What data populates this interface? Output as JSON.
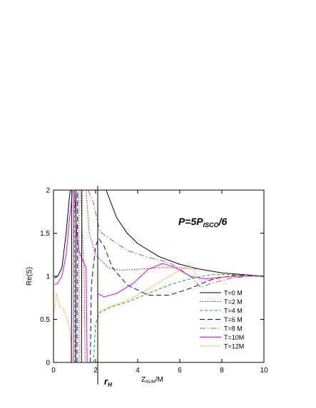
{
  "chart_data": {
    "type": "line",
    "xlabel": {
      "main": "Z",
      "sub": "NUM",
      "suffix": "/M"
    },
    "ylabel": "Re(S)",
    "xlim": [
      0,
      10
    ],
    "ylim": [
      0,
      2
    ],
    "xticks": [
      "0",
      "2",
      "4",
      "6",
      "8",
      "10"
    ],
    "yticks": [
      "0",
      "0.5",
      "1",
      "1.5",
      "2"
    ],
    "grid": false,
    "legend_position": "bottom-right",
    "annotation": {
      "base": "P=5P",
      "sub": "ISCO",
      "tail": "/6"
    },
    "rh_label": {
      "base": "r",
      "sub": "H"
    },
    "rh_value": 2.1,
    "series": [
      {
        "name": "T=0 M",
        "color": "#000000",
        "dash": "",
        "points": [
          [
            0.05,
            0.98
          ],
          [
            0.2,
            1.0
          ],
          [
            0.4,
            1.1
          ],
          [
            0.6,
            1.5
          ],
          [
            0.75,
            1.9
          ],
          [
            0.8,
            2.0
          ],
          null,
          [
            2.5,
            2.0
          ],
          [
            3,
            1.68
          ],
          [
            3.5,
            1.5
          ],
          [
            4,
            1.38
          ],
          [
            5,
            1.23
          ],
          [
            6,
            1.14
          ],
          [
            7,
            1.08
          ],
          [
            8,
            1.04
          ],
          [
            9,
            1.02
          ],
          [
            10,
            1.0
          ]
        ]
      },
      {
        "name": "T=2 M",
        "color": "#d00000",
        "dash": "1.5,2",
        "points": [
          [
            1.3,
            2.0
          ],
          [
            1.35,
            1.6
          ],
          [
            1.4,
            1.3
          ],
          [
            1.45,
            1.1
          ],
          [
            1.5,
            0.0
          ],
          null,
          [
            1.55,
            2.0
          ],
          [
            1.7,
            1.5
          ],
          [
            2,
            1.25
          ],
          [
            2.6,
            1.1
          ],
          [
            3.2,
            1.07
          ],
          [
            4,
            1.08
          ],
          [
            5,
            1.1
          ],
          [
            6,
            1.1
          ],
          [
            7,
            1.08
          ],
          [
            8,
            1.04
          ],
          [
            9,
            1.02
          ],
          [
            10,
            1.0
          ]
        ]
      },
      {
        "name": "T=4 M",
        "color": "#00bb00",
        "dash": "4,3",
        "points": [
          [
            1.9,
            0.0
          ],
          [
            2.0,
            0.45
          ],
          [
            2.2,
            0.58
          ],
          [
            2.8,
            0.65
          ],
          [
            3.5,
            0.7
          ],
          [
            4.5,
            0.8
          ],
          [
            5.5,
            0.9
          ],
          [
            6.5,
            0.97
          ],
          [
            7.5,
            1.02
          ],
          [
            8.5,
            1.02
          ],
          [
            9.3,
            1.01
          ],
          [
            10,
            1.0
          ]
        ]
      },
      {
        "name": "T=6 M",
        "color": "#0000dd",
        "dash": "7,4",
        "points": [
          [
            1.75,
            0.0
          ],
          [
            1.8,
            0.9
          ],
          [
            2.0,
            1.35
          ],
          [
            2.15,
            1.44
          ],
          [
            2.4,
            1.35
          ],
          [
            2.8,
            1.1
          ],
          [
            3.5,
            0.9
          ],
          [
            4.5,
            0.78
          ],
          [
            5.5,
            0.78
          ],
          [
            6.5,
            0.86
          ],
          [
            7.5,
            0.96
          ],
          [
            8.5,
            1.01
          ],
          [
            9.3,
            1.01
          ],
          [
            10,
            1.0
          ]
        ]
      },
      {
        "name": "T=8 M",
        "color": "#a06060",
        "dash": "8,3,1.5,3",
        "points": [
          [
            1.65,
            2.0
          ],
          [
            1.9,
            1.85
          ],
          [
            2.2,
            1.52
          ],
          [
            2.6,
            1.45
          ],
          [
            3.5,
            1.3
          ],
          [
            4.5,
            1.22
          ],
          [
            5.5,
            1.16
          ],
          [
            6.5,
            1.0
          ],
          [
            7,
            0.87
          ],
          [
            7.5,
            0.92
          ],
          [
            8.5,
            0.98
          ],
          [
            9.3,
            1.0
          ],
          [
            10,
            1.0
          ]
        ]
      },
      {
        "name": "T=10M",
        "color": "#ee00ee",
        "dash": "",
        "points": [
          [
            0.05,
            0.9
          ],
          [
            0.2,
            0.92
          ],
          [
            0.4,
            1.0
          ],
          [
            0.6,
            1.25
          ],
          [
            0.7,
            1.5
          ],
          [
            0.75,
            1.65
          ],
          [
            0.85,
            1.85
          ],
          [
            0.9,
            2.0
          ],
          null,
          [
            1.0,
            2.0
          ],
          [
            1.1,
            1.5
          ],
          [
            1.2,
            1.3
          ],
          [
            1.4,
            1.18
          ],
          [
            1.55,
            1.1
          ],
          [
            1.6,
            0.0
          ],
          null,
          [
            2.1,
            0.8
          ],
          [
            2.4,
            0.76
          ],
          [
            3,
            0.8
          ],
          [
            3.8,
            0.92
          ],
          [
            4.5,
            1.08
          ],
          [
            5.2,
            1.15
          ],
          [
            5.8,
            1.1
          ],
          [
            6.5,
            1.0
          ],
          [
            7.2,
            0.97
          ],
          [
            8,
            0.99
          ],
          [
            9,
            1.0
          ],
          [
            10,
            1.0
          ]
        ]
      },
      {
        "name": "T=12M",
        "color": "#ff9900",
        "dash": "1.5,1.5",
        "points": [
          [
            0.05,
            0.6
          ],
          [
            0.15,
            0.8
          ],
          [
            0.3,
            0.64
          ],
          [
            0.45,
            0.63
          ],
          [
            0.6,
            0.55
          ],
          [
            0.75,
            0.4
          ],
          [
            0.85,
            0.2
          ],
          [
            0.9,
            0.0
          ],
          null,
          [
            2.1,
            0.58
          ],
          [
            2.6,
            0.64
          ],
          [
            3.5,
            0.72
          ],
          [
            4.5,
            0.85
          ],
          [
            5.5,
            1.0
          ],
          [
            6.2,
            1.1
          ],
          [
            6.5,
            1.12
          ],
          [
            7,
            0.93
          ],
          [
            7.5,
            0.97
          ],
          [
            8.5,
            1.0
          ],
          [
            10,
            1.0
          ]
        ]
      },
      {
        "name": "",
        "color": "#000000",
        "dash": "",
        "points": [
          [
            0.85,
            0.0
          ],
          [
            0.87,
            2.0
          ]
        ]
      },
      {
        "name": "",
        "color": "#000000",
        "dash": "",
        "points": [
          [
            1.05,
            0.0
          ],
          [
            1.07,
            2.0
          ]
        ]
      },
      {
        "name": "",
        "color": "#000000",
        "dash": "",
        "points": [
          [
            1.33,
            0.0
          ],
          [
            1.35,
            2.0
          ]
        ]
      },
      {
        "name": "",
        "color": "#ee00ee",
        "dash": "",
        "points": [
          [
            0.95,
            0.0
          ],
          [
            0.97,
            2.0
          ]
        ]
      },
      {
        "name": "",
        "color": "#0000dd",
        "dash": "7,4",
        "points": [
          [
            1.12,
            0.0
          ],
          [
            1.14,
            2.0
          ]
        ]
      },
      {
        "name": "",
        "color": "#00bb00",
        "dash": "4,3",
        "points": [
          [
            1.0,
            2.0
          ],
          [
            1.02,
            0.0
          ]
        ]
      },
      {
        "name": "",
        "color": "#d00000",
        "dash": "1.5,2",
        "points": [
          [
            1.2,
            2.0
          ],
          [
            1.22,
            0.0
          ]
        ]
      }
    ]
  }
}
